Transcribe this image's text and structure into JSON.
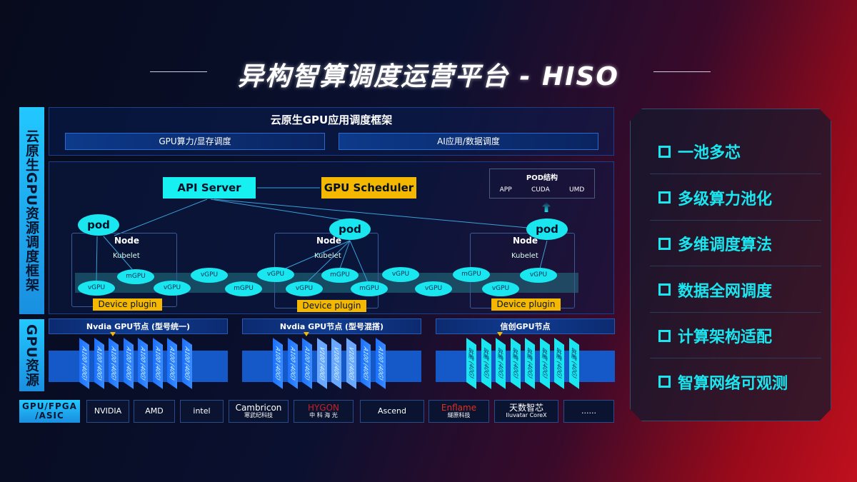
{
  "title": "异构智算调度运营平台 - HISO",
  "left_labels": {
    "top": "云原生GPU资源调度框架",
    "bottom": "GPU资源"
  },
  "framework": {
    "title": "云原生GPU应用调度框架",
    "boxes": [
      "GPU算力/显存调度",
      "AI应用/数据调度"
    ]
  },
  "k8s": {
    "api_server": "API Server",
    "scheduler": "GPU Scheduler",
    "pod_struct": {
      "title": "POD结构",
      "items": [
        "APP",
        "CUDA",
        "UMD"
      ]
    },
    "pod": "pod",
    "node": "Node",
    "kubelet": "Kubelet",
    "device_plugin": "Device plugin",
    "gpus": [
      "vGPU",
      "mGPU",
      "vGPU",
      "vGPU",
      "mGPU",
      "vGPU",
      "vGPU",
      "mGPU",
      "mGPU",
      "vGPU",
      "vGPU",
      "mGPU",
      "vGPU",
      "vGPU"
    ]
  },
  "gpu_nodes": [
    {
      "title": "Nvdia GPU节点 (型号统一)",
      "cards": [
        "A100 (40G)",
        "A100 (40G)",
        "A100 (40G)",
        "A100 (40G)",
        "A100 (40G)",
        "A100 (40G)",
        "A100 (40G)",
        "A100 (40G)"
      ]
    },
    {
      "title": "Nvdia GPU节点 (型号混搭)",
      "cards": [
        "A100 (40G)",
        "A100 (40G)",
        "A100 (40G)",
        "V100 (40G)",
        "V100 (40G)",
        "V100 (40G)",
        "A100 (40G)",
        "A100 (40G)"
      ]
    },
    {
      "title": "信创GPU节点",
      "cards": [
        "昇腾 (40G)",
        "昇腾 (40G)",
        "昇腾 (40G)",
        "昇腾 (40G)",
        "昇腾 (40G)",
        "昇腾 (40G)",
        "昇腾 (40G)",
        "昇腾 (40G)"
      ]
    }
  ],
  "vendors": {
    "label": "GPU/FPGA /ASIC",
    "logos": [
      {
        "name": "NVIDIA",
        "sub": ""
      },
      {
        "name": "AMD",
        "sub": ""
      },
      {
        "name": "intel",
        "sub": ""
      },
      {
        "name": "Cambricon",
        "sub": "寒武纪科技"
      },
      {
        "name": "HYGON",
        "sub": "中 科 海 光"
      },
      {
        "name": "Ascend",
        "sub": ""
      },
      {
        "name": "Enflame",
        "sub": "燧原科技"
      },
      {
        "name": "天数智芯",
        "sub": "Iluvatar CoreX"
      },
      {
        "name": "......",
        "sub": ""
      }
    ]
  },
  "features": [
    "一池多芯",
    "多级算力池化",
    "多维调度算法",
    "数据全网调度",
    "计算架构适配",
    "智算网络可观测"
  ],
  "colors": {
    "cyan": "#19e6ef",
    "yellow": "#f5b800",
    "blue": "#1558c8"
  }
}
